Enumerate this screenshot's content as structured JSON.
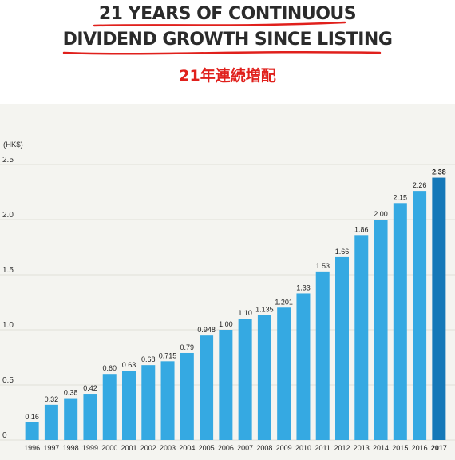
{
  "title_line1": "21 YEARS OF CONTINUOUS",
  "title_line2": "DIVIDEND GROWTH SINCE LISTING",
  "subtitle_jp": "21年連続増配",
  "colors": {
    "bar": "#35a9e2",
    "bar_highlight": "#1578b8",
    "title": "#2b2b2b",
    "underline": "#e0201c",
    "jp_text": "#e0201c",
    "chart_bg": "#f4f4f0"
  },
  "chart_data": {
    "type": "bar",
    "ylabel": "(HK$)",
    "ylim": [
      0,
      2.5
    ],
    "yticks": [
      "0",
      "0.5",
      "1.0",
      "1.5",
      "2.0",
      "2.5"
    ],
    "categories": [
      "1996",
      "1997",
      "1998",
      "1999",
      "2000",
      "2001",
      "2002",
      "2003",
      "2004",
      "2005",
      "2006",
      "2007",
      "2008",
      "2009",
      "2010",
      "2011",
      "2012",
      "2013",
      "2014",
      "2015",
      "2016",
      "2017"
    ],
    "values": [
      0.16,
      0.32,
      0.38,
      0.42,
      0.6,
      0.63,
      0.68,
      0.715,
      0.79,
      0.948,
      1.0,
      1.1,
      1.135,
      1.201,
      1.33,
      1.53,
      1.66,
      1.86,
      2.0,
      2.15,
      2.26,
      2.38
    ],
    "data_labels": [
      "0.16",
      "0.32",
      "0.38",
      "0.42",
      "0.60",
      "0.63",
      "0.68",
      "0.715",
      "0.79",
      "0.948",
      "1.00",
      "1.10",
      "1.135",
      "1.201",
      "1.33",
      "1.53",
      "1.66",
      "1.86",
      "2.00",
      "2.15",
      "2.26",
      "2.38"
    ],
    "highlight_category": "2017",
    "grid": true
  }
}
